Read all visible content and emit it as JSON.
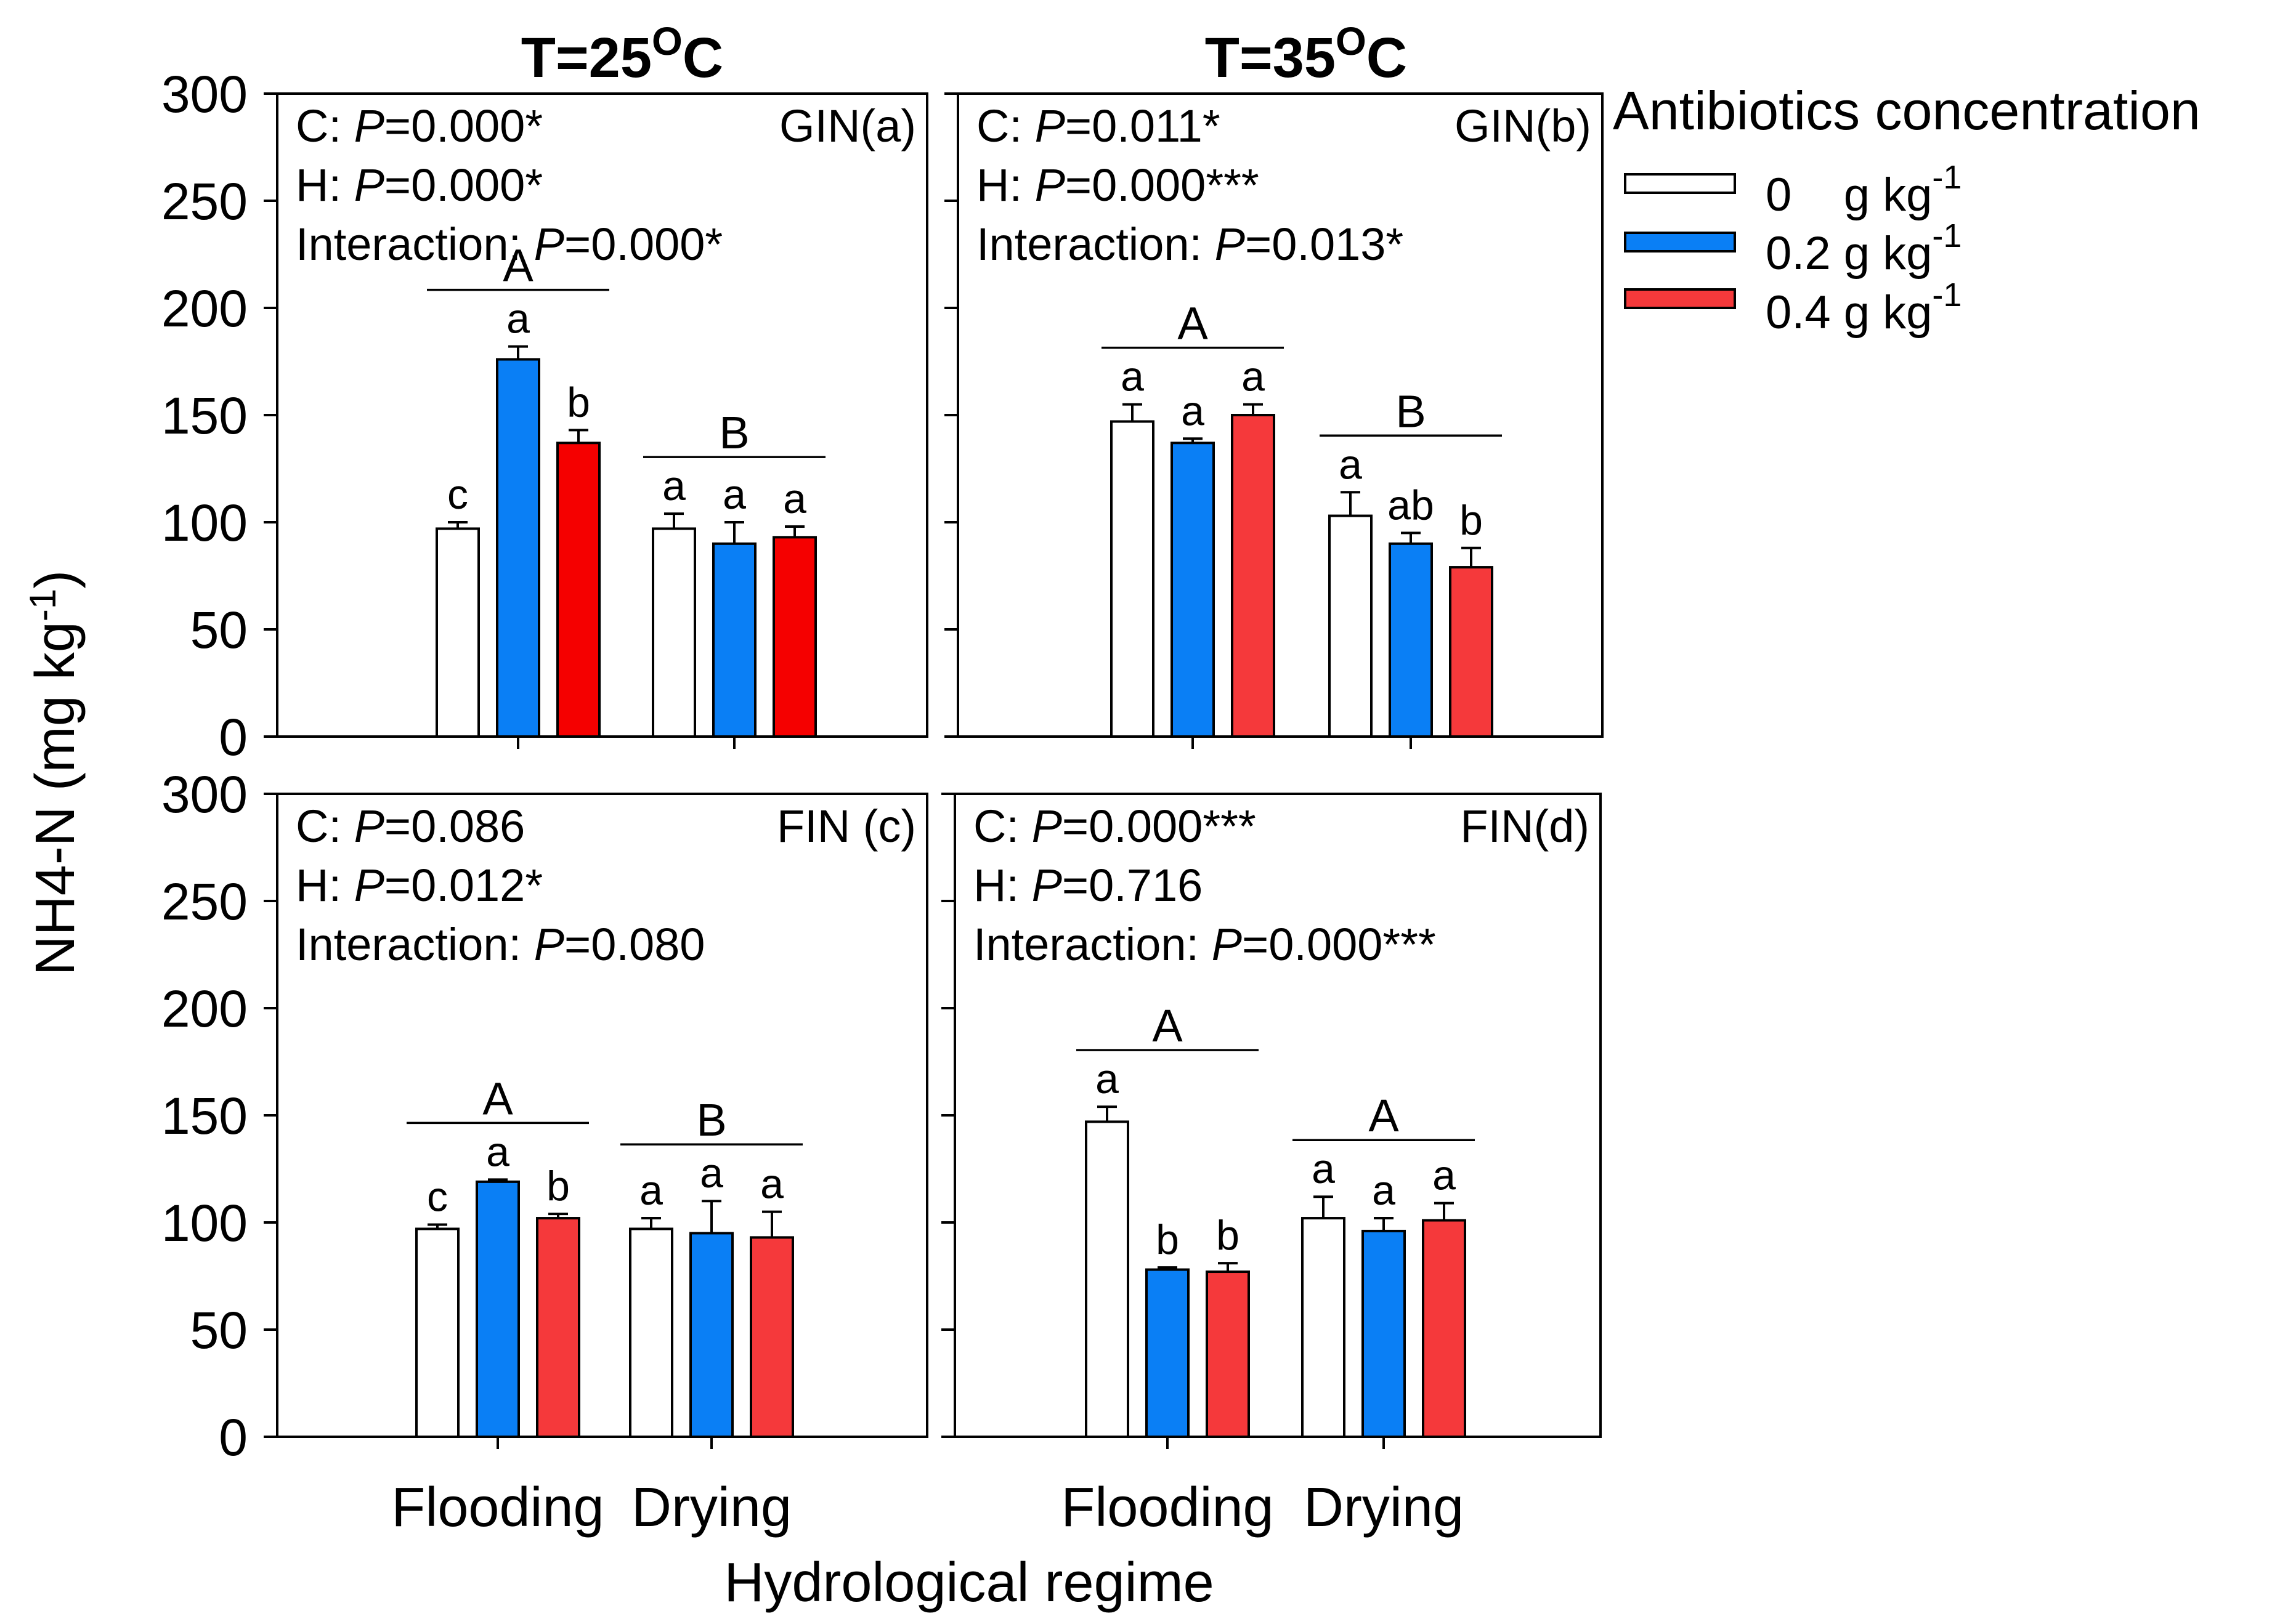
{
  "figure": {
    "y_axis_label": "NH4-N (mg kg",
    "y_axis_sup": "-1",
    "y_axis_close": ")",
    "x_axis_label": "Hydrological regime"
  },
  "legend": {
    "title": "Antibiotics concentration",
    "items": [
      {
        "label": "0    g kg",
        "sup": "-1",
        "color": "#ffffff"
      },
      {
        "label": "0.2 g kg",
        "sup": "-1",
        "color": "#0a7ff5"
      },
      {
        "label": "0.4 g kg",
        "sup": "-1",
        "color": "#f5393b"
      }
    ]
  },
  "chart_data": [
    {
      "type": "bar",
      "panel": "a",
      "column_heading": "T=25",
      "heading_sup": "O",
      "heading_unit": "C",
      "tag": "GIN(a)",
      "stats": [
        {
          "prefix": "C: ",
          "p": "P",
          "rest": "=0.000*"
        },
        {
          "prefix": "H: ",
          "p": "P",
          "rest": "=0.000*"
        },
        {
          "prefix": "Interaction: ",
          "p": "P",
          "rest": "=0.000*"
        }
      ],
      "categories": [
        "Flooding",
        "Drying"
      ],
      "series": [
        {
          "name": "0 g kg-1",
          "values": [
            97,
            97
          ],
          "errors": [
            3,
            7
          ],
          "letters": [
            "c",
            "a"
          ],
          "color": "#ffffff"
        },
        {
          "name": "0.2 g kg-1",
          "values": [
            176,
            90
          ],
          "errors": [
            6,
            10
          ],
          "letters": [
            "a",
            "a"
          ],
          "color": "#0a7ff5"
        },
        {
          "name": "0.4 g kg-1",
          "values": [
            137,
            93
          ],
          "errors": [
            6,
            5
          ],
          "letters": [
            "b",
            "a"
          ],
          "color": "#f50000"
        }
      ],
      "group_letters": [
        "A",
        "B"
      ],
      "ylim": [
        0,
        300
      ],
      "yticks": [
        0,
        50,
        100,
        150,
        200,
        250,
        300
      ]
    },
    {
      "type": "bar",
      "panel": "b",
      "column_heading": "T=35",
      "heading_sup": "O",
      "heading_unit": "C",
      "tag": "GIN(b)",
      "stats": [
        {
          "prefix": "C: ",
          "p": "P",
          "rest": "=0.011*"
        },
        {
          "prefix": "H: ",
          "p": "P",
          "rest": "=0.000***"
        },
        {
          "prefix": "Interaction: ",
          "p": "P",
          "rest": "=0.013*"
        }
      ],
      "categories": [
        "Flooding",
        "Drying"
      ],
      "series": [
        {
          "name": "0 g kg-1",
          "values": [
            147,
            103
          ],
          "errors": [
            8,
            11
          ],
          "letters": [
            "a",
            "a"
          ],
          "color": "#ffffff"
        },
        {
          "name": "0.2 g kg-1",
          "values": [
            137,
            90
          ],
          "errors": [
            2,
            5
          ],
          "letters": [
            "a",
            "ab"
          ],
          "color": "#0a7ff5"
        },
        {
          "name": "0.4 g kg-1",
          "values": [
            150,
            79
          ],
          "errors": [
            5,
            9
          ],
          "letters": [
            "a",
            "b"
          ],
          "color": "#f5393b"
        }
      ],
      "group_letters": [
        "A",
        "B"
      ],
      "ylim": [
        0,
        300
      ],
      "yticks": [
        0,
        50,
        100,
        150,
        200,
        250,
        300
      ]
    },
    {
      "type": "bar",
      "panel": "c",
      "tag": "FIN (c)",
      "stats": [
        {
          "prefix": "C: ",
          "p": "P",
          "rest": "=0.086"
        },
        {
          "prefix": "H: ",
          "p": "P",
          "rest": "=0.012*"
        },
        {
          "prefix": "Interaction: ",
          "p": "P",
          "rest": "=0.080"
        }
      ],
      "categories": [
        "Flooding",
        "Drying"
      ],
      "series": [
        {
          "name": "0 g kg-1",
          "values": [
            97,
            97
          ],
          "errors": [
            2,
            5
          ],
          "letters": [
            "c",
            "a"
          ],
          "color": "#ffffff"
        },
        {
          "name": "0.2 g kg-1",
          "values": [
            119,
            95
          ],
          "errors": [
            1,
            15
          ],
          "letters": [
            "a",
            "a"
          ],
          "color": "#0a7ff5"
        },
        {
          "name": "0.4 g kg-1",
          "values": [
            102,
            93
          ],
          "errors": [
            2,
            12
          ],
          "letters": [
            "b",
            "a"
          ],
          "color": "#f5393b"
        }
      ],
      "group_letters": [
        "A",
        "B"
      ],
      "ylim": [
        0,
        300
      ],
      "yticks": [
        0,
        50,
        100,
        150,
        200,
        250,
        300
      ]
    },
    {
      "type": "bar",
      "panel": "d",
      "tag": "FIN(d)",
      "stats": [
        {
          "prefix": "C: ",
          "p": "P",
          "rest": "=0.000***"
        },
        {
          "prefix": "H: ",
          "p": "P",
          "rest": "=0.716"
        },
        {
          "prefix": "Interaction: ",
          "p": "P",
          "rest": "=0.000***"
        }
      ],
      "categories": [
        "Flooding",
        "Drying"
      ],
      "series": [
        {
          "name": "0 g kg-1",
          "values": [
            147,
            102
          ],
          "errors": [
            7,
            10
          ],
          "letters": [
            "a",
            "a"
          ],
          "color": "#ffffff"
        },
        {
          "name": "0.2 g kg-1",
          "values": [
            78,
            96
          ],
          "errors": [
            1,
            6
          ],
          "letters": [
            "b",
            "a"
          ],
          "color": "#0a7ff5"
        },
        {
          "name": "0.4 g kg-1",
          "values": [
            77,
            101
          ],
          "errors": [
            4,
            8
          ],
          "letters": [
            "b",
            "a"
          ],
          "color": "#f5393b"
        }
      ],
      "group_letters": [
        "A",
        "A"
      ],
      "ylim": [
        0,
        300
      ],
      "yticks": [
        0,
        50,
        100,
        150,
        200,
        250,
        300
      ]
    }
  ]
}
